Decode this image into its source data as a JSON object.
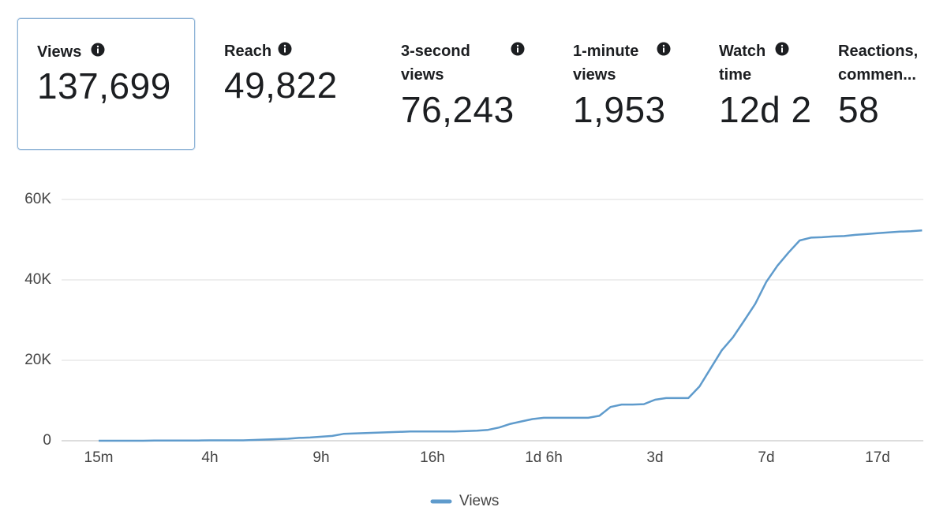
{
  "metrics": [
    {
      "label": "Views",
      "value": "137,699"
    },
    {
      "label": "Reach",
      "value": "49,822"
    },
    {
      "label": "3-second views",
      "value": "76,243"
    },
    {
      "label": "1-minute views",
      "value": "1,953"
    },
    {
      "label": "Watch time",
      "value": "12d 2"
    },
    {
      "label": "Reactions, commen...",
      "value": "58"
    }
  ],
  "chart_data": {
    "type": "line",
    "categories": [
      "15m",
      null,
      null,
      null,
      null,
      null,
      null,
      null,
      null,
      null,
      "4h",
      null,
      null,
      null,
      null,
      null,
      null,
      null,
      null,
      null,
      "9h",
      null,
      null,
      null,
      null,
      null,
      null,
      null,
      null,
      null,
      "16h",
      null,
      null,
      null,
      null,
      null,
      null,
      null,
      null,
      null,
      "1d 6h",
      null,
      null,
      null,
      null,
      null,
      null,
      null,
      null,
      null,
      "3d",
      null,
      null,
      null,
      null,
      null,
      null,
      null,
      null,
      null,
      "7d",
      null,
      null,
      null,
      null,
      null,
      null,
      null,
      null,
      null,
      "17d",
      null,
      null,
      null,
      null
    ],
    "series": [
      {
        "name": "Views",
        "color": "#5f9bcc",
        "values": [
          0,
          0,
          0,
          0,
          0,
          50,
          50,
          50,
          50,
          50,
          100,
          100,
          100,
          100,
          200,
          300,
          400,
          500,
          700,
          800,
          1000,
          1200,
          1700,
          1800,
          1900,
          2000,
          2100,
          2200,
          2300,
          2300,
          2300,
          2300,
          2300,
          2400,
          2500,
          2700,
          3300,
          4200,
          4800,
          5400,
          5700,
          5700,
          5700,
          5700,
          5700,
          6200,
          8400,
          9000,
          9000,
          9100,
          10200,
          10600,
          10600,
          10600,
          13500,
          18000,
          22500,
          25700,
          29800,
          34000,
          39500,
          43500,
          46800,
          49800,
          50500,
          50600,
          50800,
          50900,
          51200,
          51400,
          51600,
          51800,
          52000,
          52100,
          52300
        ]
      }
    ],
    "ylim": [
      0,
      60000
    ],
    "yticks": [
      {
        "value": 0,
        "label": "0"
      },
      {
        "value": 20000,
        "label": "20K"
      },
      {
        "value": 40000,
        "label": "40K"
      },
      {
        "value": 60000,
        "label": "60K"
      }
    ],
    "grid": true,
    "legend": "bottom"
  }
}
